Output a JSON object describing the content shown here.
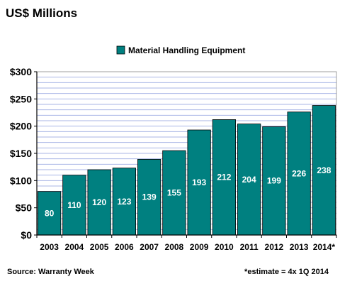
{
  "chart_data": {
    "type": "bar",
    "title": "US$ Millions",
    "categories": [
      "2003",
      "2004",
      "2005",
      "2006",
      "2007",
      "2008",
      "2009",
      "2010",
      "2011",
      "2012",
      "2013",
      "2014*"
    ],
    "series": [
      {
        "name": "Material Handling Equipment",
        "values": [
          80,
          110,
          120,
          123,
          139,
          155,
          193,
          212,
          204,
          199,
          226,
          238
        ]
      }
    ],
    "data_labels": [
      "80",
      "110",
      "120",
      "123",
      "139",
      "155",
      "193",
      "212",
      "204",
      "199",
      "226",
      "238"
    ],
    "ylim": [
      0,
      300
    ],
    "y_ticks": [
      0,
      50,
      100,
      150,
      200,
      250,
      300
    ],
    "y_tick_labels": [
      "$0",
      "$50",
      "$100",
      "$150",
      "$200",
      "$250",
      "$300"
    ],
    "grid": true,
    "minor_grid_step": 10,
    "legend_position": "top-center",
    "colors": {
      "bar": "#008080",
      "grid": "#a9b6e6",
      "axis": "#000000"
    },
    "source": "Source: Warranty Week",
    "footnote": "*estimate = 4x 1Q 2014"
  }
}
